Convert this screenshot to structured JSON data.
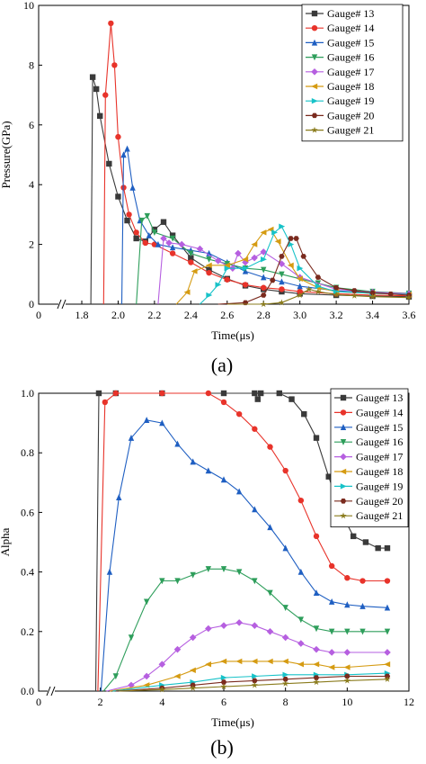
{
  "panels": [
    {
      "caption": "(a)",
      "chart_data": {
        "type": "line",
        "xlabel": "Time(μs)",
        "ylabel": "Pressure(GPa)",
        "xlim": [
          0,
          3.6
        ],
        "ylim": [
          0,
          10
        ],
        "axis_break": true,
        "xticks": [
          "0",
          "1.8",
          "2.0",
          "2.2",
          "2.4",
          "2.6",
          "2.8",
          "3.0",
          "3.2",
          "3.4",
          "3.6"
        ],
        "yticks": [
          "0",
          "2",
          "4",
          "6",
          "8",
          "10"
        ],
        "legend_position": "top-right",
        "grid": false,
        "series": [
          {
            "name": "Gauge# 13",
            "color": "#3a3a3a",
            "marker": "square",
            "x": [
              1.85,
              1.86,
              1.88,
              1.9,
              1.95,
              2.0,
              2.05,
              2.1,
              2.15,
              2.2,
              2.25,
              2.3,
              2.4,
              2.5,
              2.6,
              2.7,
              2.8,
              2.9,
              3.0,
              3.2,
              3.4,
              3.6
            ],
            "y": [
              0,
              7.6,
              7.2,
              6.3,
              4.7,
              3.6,
              2.8,
              2.2,
              2.1,
              2.5,
              2.75,
              2.3,
              1.55,
              1.15,
              0.85,
              0.62,
              0.5,
              0.42,
              0.35,
              0.3,
              0.27,
              0.25
            ]
          },
          {
            "name": "Gauge# 14",
            "color": "#e8332a",
            "marker": "circle",
            "x": [
              1.92,
              1.93,
              1.96,
              1.98,
              2.0,
              2.03,
              2.06,
              2.1,
              2.15,
              2.2,
              2.3,
              2.4,
              2.5,
              2.6,
              2.7,
              2.8,
              2.9,
              3.0,
              3.2,
              3.4,
              3.6
            ],
            "y": [
              0,
              7.0,
              9.4,
              8.0,
              5.6,
              3.9,
              3.0,
              2.4,
              2.05,
              2.0,
              1.7,
              1.4,
              1.05,
              0.82,
              0.65,
              0.55,
              0.5,
              0.42,
              0.35,
              0.3,
              0.28
            ]
          },
          {
            "name": "Gauge# 15",
            "color": "#1f5fc2",
            "marker": "triangle-up",
            "x": [
              2.02,
              2.03,
              2.05,
              2.08,
              2.12,
              2.17,
              2.22,
              2.3,
              2.4,
              2.5,
              2.6,
              2.7,
              2.8,
              2.9,
              3.0,
              3.2,
              3.4,
              3.6
            ],
            "y": [
              0,
              5.0,
              5.2,
              3.9,
              2.8,
              2.3,
              2.0,
              1.9,
              1.8,
              1.7,
              1.4,
              1.1,
              0.9,
              0.75,
              0.6,
              0.45,
              0.38,
              0.33
            ]
          },
          {
            "name": "Gauge# 16",
            "color": "#2e9e5b",
            "marker": "triangle-down",
            "x": [
              2.1,
              2.13,
              2.16,
              2.2,
              2.3,
              2.4,
              2.5,
              2.6,
              2.7,
              2.8,
              2.9,
              3.0,
              3.1,
              3.2,
              3.4,
              3.6
            ],
            "y": [
              0,
              2.8,
              2.95,
              2.4,
              2.2,
              1.7,
              1.5,
              1.35,
              1.2,
              1.15,
              1.0,
              0.85,
              0.7,
              0.55,
              0.42,
              0.36
            ]
          },
          {
            "name": "Gauge# 17",
            "color": "#b65fe0",
            "marker": "diamond",
            "x": [
              2.22,
              2.25,
              2.28,
              2.35,
              2.45,
              2.55,
              2.63,
              2.66,
              2.7,
              2.75,
              2.8,
              2.9,
              3.0,
              3.2,
              3.4,
              3.6
            ],
            "y": [
              0,
              2.2,
              2.05,
              2.0,
              1.85,
              1.45,
              1.2,
              1.7,
              1.4,
              1.55,
              1.75,
              1.35,
              0.9,
              0.5,
              0.4,
              0.35
            ]
          },
          {
            "name": "Gauge# 18",
            "color": "#d59b12",
            "marker": "triangle-left",
            "x": [
              2.32,
              2.38,
              2.42,
              2.5,
              2.6,
              2.7,
              2.75,
              2.8,
              2.84,
              2.88,
              2.95,
              3.0,
              3.1,
              3.2,
              3.4,
              3.6
            ],
            "y": [
              0,
              0.4,
              1.1,
              1.3,
              1.3,
              1.5,
              2.0,
              2.4,
              2.5,
              2.1,
              1.3,
              0.85,
              0.55,
              0.42,
              0.36,
              0.32
            ]
          },
          {
            "name": "Gauge# 19",
            "color": "#17c2c8",
            "marker": "triangle-right",
            "x": [
              2.45,
              2.5,
              2.55,
              2.6,
              2.7,
              2.8,
              2.86,
              2.9,
              2.95,
              3.0,
              3.1,
              3.2,
              3.4,
              3.6
            ],
            "y": [
              0,
              0.3,
              0.65,
              1.2,
              1.2,
              1.5,
              2.4,
              2.6,
              2.0,
              1.2,
              0.6,
              0.42,
              0.36,
              0.32
            ]
          },
          {
            "name": "Gauge# 20",
            "color": "#7a2a1e",
            "marker": "hexagon",
            "x": [
              2.55,
              2.7,
              2.8,
              2.85,
              2.9,
              2.95,
              2.98,
              3.02,
              3.1,
              3.2,
              3.3,
              3.4,
              3.5,
              3.6
            ],
            "y": [
              0,
              0.05,
              0.3,
              0.8,
              1.6,
              2.2,
              2.2,
              1.6,
              0.9,
              0.55,
              0.45,
              0.38,
              0.34,
              0.3
            ]
          },
          {
            "name": "Gauge# 21",
            "color": "#8a7b1c",
            "marker": "star",
            "x": [
              2.6,
              2.8,
              2.9,
              3.0,
              3.05,
              3.1,
              3.2,
              3.3,
              3.4,
              3.6
            ],
            "y": [
              0,
              0,
              0.05,
              0.3,
              0.5,
              0.42,
              0.32,
              0.28,
              0.25,
              0.22
            ]
          }
        ]
      }
    },
    {
      "caption": "(b)",
      "chart_data": {
        "type": "line",
        "xlabel": "Time(μs)",
        "ylabel": "Alpha",
        "xlim": [
          0,
          12
        ],
        "ylim": [
          0,
          1.0
        ],
        "axis_break": true,
        "xticks": [
          "0",
          "2",
          "4",
          "6",
          "8",
          "10",
          "12"
        ],
        "yticks": [
          "0.0",
          "0.2",
          "0.4",
          "0.6",
          "0.8",
          "1.0"
        ],
        "legend_position": "top-right",
        "grid": false,
        "series": [
          {
            "name": "Gauge# 13",
            "color": "#3a3a3a",
            "marker": "square",
            "x": [
              1.85,
              1.95,
              2.5,
              4,
              6,
              7.0,
              7.1,
              7.2,
              7.8,
              8.2,
              8.6,
              9.0,
              9.4,
              9.8,
              10.2,
              10.6,
              11.0,
              11.3
            ],
            "y": [
              0,
              1.0,
              1.0,
              1.0,
              1.0,
              1.0,
              0.98,
              1.0,
              1.0,
              0.98,
              0.93,
              0.85,
              0.72,
              0.6,
              0.52,
              0.5,
              0.48,
              0.48
            ]
          },
          {
            "name": "Gauge# 14",
            "color": "#e8332a",
            "marker": "circle",
            "x": [
              1.92,
              2.15,
              2.5,
              4,
              5.5,
              6.0,
              6.5,
              7.0,
              7.5,
              8.0,
              8.5,
              9.0,
              9.5,
              10.0,
              10.5,
              11.3
            ],
            "y": [
              0,
              0.97,
              1.0,
              1.0,
              1.0,
              0.97,
              0.93,
              0.88,
              0.82,
              0.74,
              0.64,
              0.52,
              0.42,
              0.38,
              0.37,
              0.37
            ]
          },
          {
            "name": "Gauge# 15",
            "color": "#1f5fc2",
            "marker": "triangle-up",
            "x": [
              2.02,
              2.3,
              2.6,
              3.0,
              3.5,
              4.0,
              4.5,
              5.0,
              5.5,
              6.0,
              6.5,
              7.0,
              7.5,
              8.0,
              8.5,
              9.0,
              9.5,
              10.0,
              10.5,
              11.3
            ],
            "y": [
              0,
              0.4,
              0.65,
              0.85,
              0.91,
              0.9,
              0.83,
              0.77,
              0.74,
              0.71,
              0.67,
              0.61,
              0.55,
              0.48,
              0.4,
              0.33,
              0.3,
              0.29,
              0.285,
              0.28
            ]
          },
          {
            "name": "Gauge# 16",
            "color": "#2e9e5b",
            "marker": "triangle-down",
            "x": [
              2.1,
              2.5,
              3.0,
              3.5,
              4.0,
              4.5,
              5.0,
              5.5,
              6.0,
              6.5,
              7.0,
              7.5,
              8.0,
              8.5,
              9.0,
              9.5,
              10.0,
              10.5,
              11.3
            ],
            "y": [
              0,
              0.05,
              0.18,
              0.3,
              0.37,
              0.37,
              0.39,
              0.41,
              0.41,
              0.4,
              0.37,
              0.33,
              0.28,
              0.24,
              0.21,
              0.2,
              0.2,
              0.2,
              0.2
            ]
          },
          {
            "name": "Gauge# 17",
            "color": "#b65fe0",
            "marker": "diamond",
            "x": [
              2.2,
              3.0,
              3.5,
              4.0,
              4.5,
              5.0,
              5.5,
              6.0,
              6.5,
              7.0,
              7.5,
              8.0,
              8.5,
              9.0,
              9.5,
              10.0,
              11.3
            ],
            "y": [
              0,
              0.02,
              0.05,
              0.09,
              0.14,
              0.18,
              0.21,
              0.22,
              0.23,
              0.22,
              0.2,
              0.18,
              0.16,
              0.14,
              0.13,
              0.13,
              0.13
            ]
          },
          {
            "name": "Gauge# 18",
            "color": "#d59b12",
            "marker": "triangle-left",
            "x": [
              2.3,
              3.5,
              4.5,
              5.0,
              5.5,
              6.0,
              6.5,
              7.0,
              7.5,
              8.0,
              8.5,
              9.0,
              9.5,
              10.0,
              11.3
            ],
            "y": [
              0,
              0.02,
              0.05,
              0.07,
              0.09,
              0.1,
              0.1,
              0.1,
              0.1,
              0.1,
              0.09,
              0.09,
              0.08,
              0.08,
              0.09
            ]
          },
          {
            "name": "Gauge# 19",
            "color": "#17c2c8",
            "marker": "triangle-right",
            "x": [
              2.4,
              4.0,
              5.0,
              6.0,
              7.0,
              8.0,
              9.0,
              10.0,
              11.3
            ],
            "y": [
              0,
              0.02,
              0.03,
              0.045,
              0.05,
              0.055,
              0.055,
              0.055,
              0.06
            ]
          },
          {
            "name": "Gauge# 20",
            "color": "#7a2a1e",
            "marker": "hexagon",
            "x": [
              2.5,
              4.0,
              5.0,
              6.0,
              7.0,
              8.0,
              9.0,
              10.0,
              11.3
            ],
            "y": [
              0,
              0.01,
              0.02,
              0.03,
              0.035,
              0.04,
              0.045,
              0.05,
              0.05
            ]
          },
          {
            "name": "Gauge# 21",
            "color": "#8a7b1c",
            "marker": "star",
            "x": [
              2.6,
              4.0,
              5.0,
              6.0,
              7.0,
              8.0,
              9.0,
              10.0,
              11.3
            ],
            "y": [
              0,
              0.005,
              0.01,
              0.015,
              0.02,
              0.025,
              0.03,
              0.035,
              0.04
            ]
          }
        ]
      }
    }
  ]
}
